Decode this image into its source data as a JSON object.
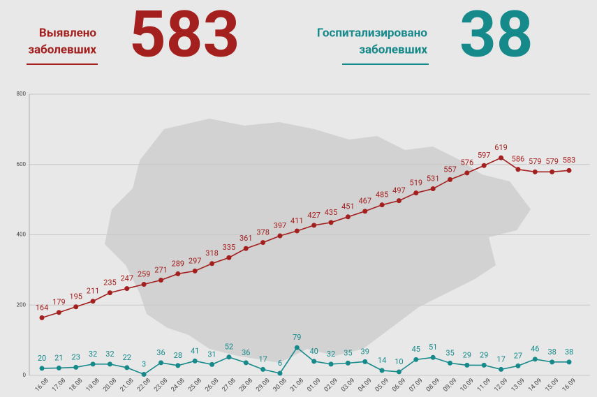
{
  "header": {
    "left": {
      "label": [
        "Выявлено",
        "заболевших"
      ],
      "value": "583"
    },
    "right": {
      "label": [
        "Госпитализировано",
        "заболевших"
      ],
      "value": "38"
    }
  },
  "chart_data": {
    "type": "line",
    "categories": [
      "16.08",
      "17.08",
      "18.08",
      "19.08",
      "20.08",
      "21.08",
      "22.08",
      "23.08",
      "24.08",
      "25.08",
      "26.08",
      "27.08",
      "28.08",
      "29.08",
      "30.08",
      "31.08",
      "01.09",
      "02.09",
      "03.09",
      "04.09",
      "05.09",
      "06.09",
      "07.09",
      "08.09",
      "09.09",
      "10.09",
      "11.09",
      "12.09",
      "13.09",
      "14.09",
      "15.09",
      "16.09"
    ],
    "series": [
      {
        "color": "#a3201f",
        "values": [
          164,
          179,
          195,
          211,
          235,
          247,
          259,
          271,
          289,
          297,
          318,
          335,
          361,
          378,
          397,
          411,
          427,
          435,
          451,
          467,
          485,
          497,
          519,
          531,
          557,
          576,
          597,
          619,
          586,
          579,
          579,
          583
        ]
      },
      {
        "color": "#16898a",
        "values": [
          20,
          21,
          23,
          32,
          32,
          22,
          3,
          36,
          28,
          41,
          31,
          52,
          36,
          17,
          6,
          79,
          40,
          32,
          35,
          39,
          14,
          10,
          45,
          51,
          35,
          29,
          29,
          17,
          27,
          46,
          38,
          38
        ]
      }
    ],
    "ylim": [
      0,
      800
    ],
    "yticks": [
      0,
      200,
      400,
      600,
      800
    ],
    "grid": true
  }
}
